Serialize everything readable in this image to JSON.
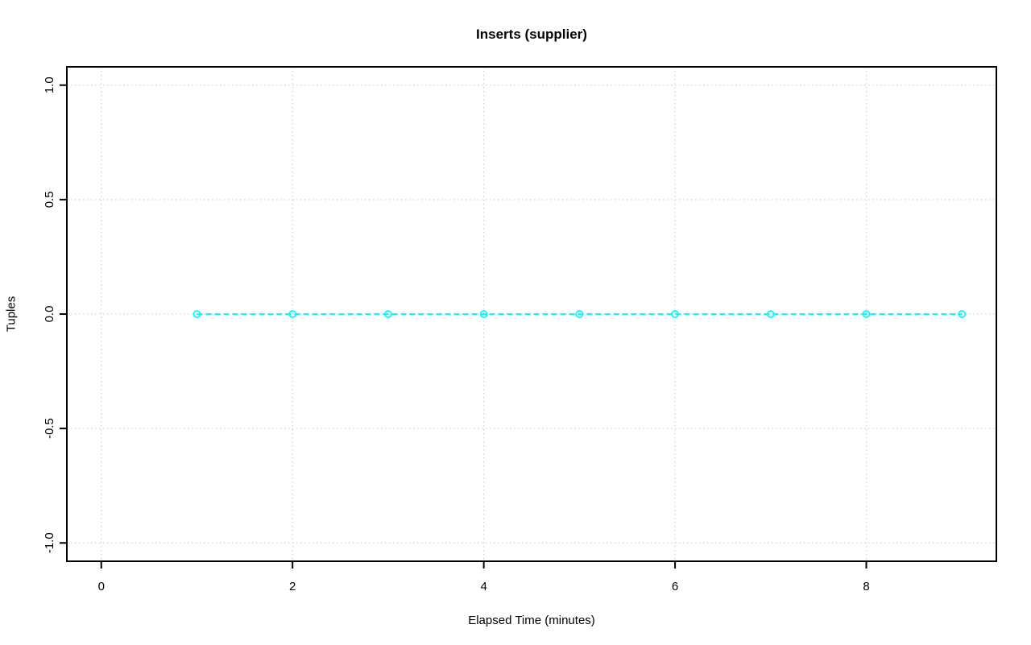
{
  "chart_data": {
    "type": "line",
    "title": "Inserts (supplier)",
    "xlabel": "Elapsed Time (minutes)",
    "ylabel": "Tuples",
    "series": [
      {
        "name": "Inserts (supplier)",
        "x": [
          1,
          2,
          3,
          4,
          5,
          6,
          7,
          8,
          9
        ],
        "y": [
          0,
          0,
          0,
          0,
          0,
          0,
          0,
          0,
          0
        ]
      }
    ],
    "xlim": [
      0,
      9
    ],
    "ylim": [
      -1,
      1
    ],
    "xticks": {
      "values": [
        0,
        2,
        4,
        6,
        8
      ],
      "labels": [
        "0",
        "2",
        "4",
        "6",
        "8"
      ]
    },
    "yticks": {
      "values": [
        -1,
        -0.5,
        0,
        0.5,
        1
      ],
      "labels": [
        "-1.0",
        "-0.5",
        "0.0",
        "0.5",
        "1.0"
      ]
    },
    "grid": true,
    "legend_position": "none",
    "line_style": "dashed",
    "marker": "open-circle",
    "colors": {
      "line": "#00FFFF",
      "marker": "#00FFFF",
      "grid": "#D3D3D3",
      "axis": "#000000",
      "text": "#000000",
      "background": "#FFFFFF"
    }
  }
}
